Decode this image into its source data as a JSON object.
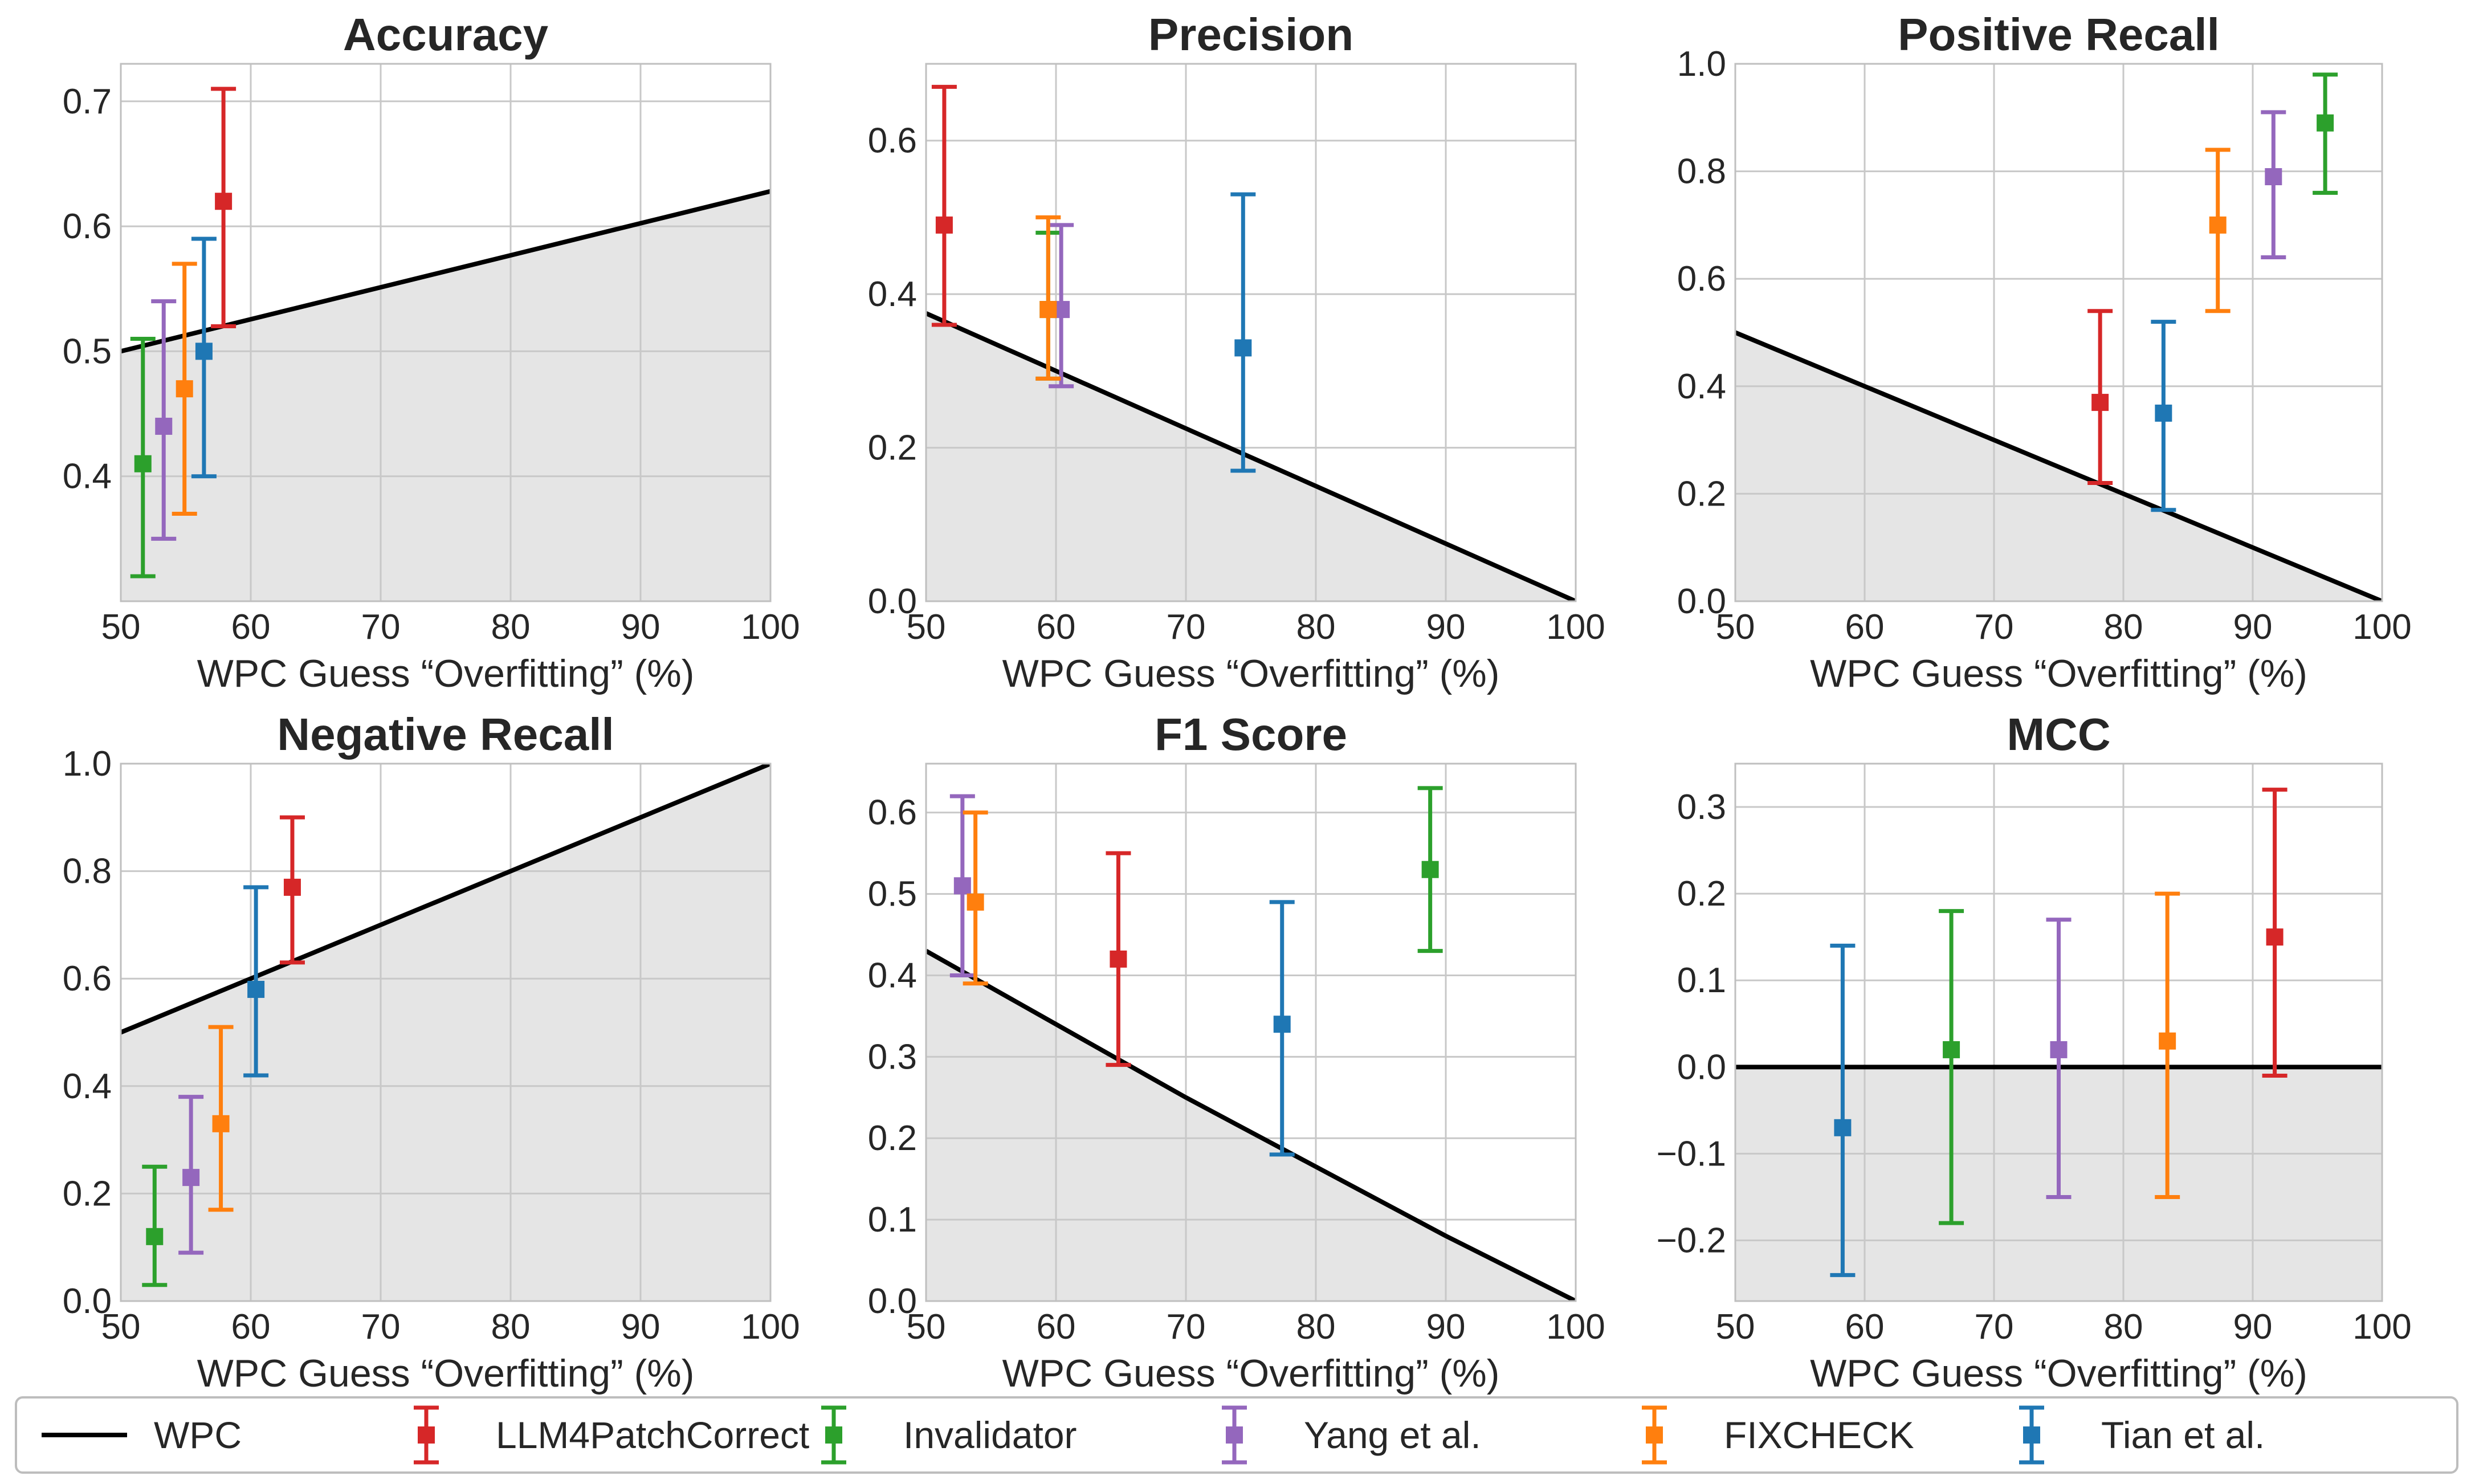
{
  "colors": {
    "WPC": "#000000",
    "LLM4PatchCorrect": "#d62728",
    "Invalidator": "#2ca02c",
    "Yang et al.": "#9467bd",
    "FIXCHECK": "#ff7f0e",
    "Tian et al.": "#1f77b4",
    "shade": "#e5e5e5",
    "grid": "#c8c8c8",
    "axes": "#bfbfbf"
  },
  "legend": {
    "placement": "bottom",
    "entries": [
      "WPC",
      "LLM4PatchCorrect",
      "Invalidator",
      "Yang et al.",
      "FIXCHECK",
      "Tian et al."
    ]
  },
  "chart_data": [
    {
      "type": "scatter",
      "title": "Accuracy",
      "xlabel": "WPC Guess “Overfitting” (%)",
      "ylabel": "",
      "xlim": [
        50,
        100
      ],
      "ylim": [
        0.3,
        0.73
      ],
      "xticks": [
        50,
        60,
        70,
        80,
        90,
        100
      ],
      "yticks": [
        0.4,
        0.5,
        0.6,
        0.7
      ],
      "grid": true,
      "wpc_line": {
        "x": [
          50,
          100
        ],
        "y": [
          0.5,
          0.628
        ]
      },
      "series": [
        {
          "name": "LLM4PatchCorrect",
          "x": 57.9,
          "y": 0.62,
          "err_low": 0.52,
          "err_high": 0.71
        },
        {
          "name": "Invalidator",
          "x": 51.7,
          "y": 0.41,
          "err_low": 0.32,
          "err_high": 0.51
        },
        {
          "name": "Yang et al.",
          "x": 53.3,
          "y": 0.44,
          "err_low": 0.35,
          "err_high": 0.54
        },
        {
          "name": "FIXCHECK",
          "x": 54.9,
          "y": 0.47,
          "err_low": 0.37,
          "err_high": 0.57
        },
        {
          "name": "Tian et al.",
          "x": 56.4,
          "y": 0.5,
          "err_low": 0.4,
          "err_high": 0.59
        }
      ]
    },
    {
      "type": "scatter",
      "title": "Precision",
      "xlabel": "WPC Guess “Overfitting” (%)",
      "ylabel": "",
      "xlim": [
        50,
        100
      ],
      "ylim": [
        0,
        0.7
      ],
      "xticks": [
        50,
        60,
        70,
        80,
        90,
        100
      ],
      "yticks": [
        0.0,
        0.2,
        0.4,
        0.6
      ],
      "grid": true,
      "wpc_line": {
        "x": [
          50,
          60,
          70,
          80,
          90,
          100
        ],
        "y": [
          0.375,
          0.3,
          0.225,
          0.15,
          0.075,
          0.0
        ]
      },
      "series": [
        {
          "name": "LLM4PatchCorrect",
          "x": 51.4,
          "y": 0.49,
          "err_low": 0.36,
          "err_high": 0.67
        },
        {
          "name": "Invalidator",
          "x": 59.4,
          "y": 0.38,
          "err_low": 0.29,
          "err_high": 0.48
        },
        {
          "name": "Yang et al.",
          "x": 60.4,
          "y": 0.38,
          "err_low": 0.28,
          "err_high": 0.49
        },
        {
          "name": "FIXCHECK",
          "x": 59.4,
          "y": 0.38,
          "err_low": 0.29,
          "err_high": 0.5
        },
        {
          "name": "Tian et al.",
          "x": 74.4,
          "y": 0.33,
          "err_low": 0.17,
          "err_high": 0.53
        }
      ]
    },
    {
      "type": "scatter",
      "title": "Positive Recall",
      "xlabel": "WPC Guess “Overfitting” (%)",
      "ylabel": "",
      "xlim": [
        50,
        100
      ],
      "ylim": [
        0,
        1.0
      ],
      "xticks": [
        50,
        60,
        70,
        80,
        90,
        100
      ],
      "yticks": [
        0.0,
        0.2,
        0.4,
        0.6,
        0.8,
        1.0
      ],
      "grid": true,
      "wpc_line": {
        "x": [
          50,
          100
        ],
        "y": [
          0.5,
          0.0
        ]
      },
      "series": [
        {
          "name": "LLM4PatchCorrect",
          "x": 78.2,
          "y": 0.37,
          "err_low": 0.22,
          "err_high": 0.54
        },
        {
          "name": "Invalidator",
          "x": 95.6,
          "y": 0.89,
          "err_low": 0.76,
          "err_high": 0.98
        },
        {
          "name": "Yang et al.",
          "x": 91.6,
          "y": 0.79,
          "err_low": 0.64,
          "err_high": 0.91
        },
        {
          "name": "FIXCHECK",
          "x": 87.3,
          "y": 0.7,
          "err_low": 0.54,
          "err_high": 0.84
        },
        {
          "name": "Tian et al.",
          "x": 83.1,
          "y": 0.35,
          "err_low": 0.17,
          "err_high": 0.52
        }
      ]
    },
    {
      "type": "scatter",
      "title": "Negative Recall",
      "xlabel": "WPC Guess “Overfitting” (%)",
      "ylabel": "",
      "xlim": [
        50,
        100
      ],
      "ylim": [
        0,
        1.0
      ],
      "xticks": [
        50,
        60,
        70,
        80,
        90,
        100
      ],
      "yticks": [
        0.0,
        0.2,
        0.4,
        0.6,
        0.8,
        1.0
      ],
      "grid": true,
      "wpc_line": {
        "x": [
          50,
          100
        ],
        "y": [
          0.5,
          1.0
        ]
      },
      "series": [
        {
          "name": "LLM4PatchCorrect",
          "x": 63.2,
          "y": 0.77,
          "err_low": 0.63,
          "err_high": 0.9
        },
        {
          "name": "Invalidator",
          "x": 52.6,
          "y": 0.12,
          "err_low": 0.03,
          "err_high": 0.25
        },
        {
          "name": "Yang et al.",
          "x": 55.4,
          "y": 0.23,
          "err_low": 0.09,
          "err_high": 0.38
        },
        {
          "name": "FIXCHECK",
          "x": 57.7,
          "y": 0.33,
          "err_low": 0.17,
          "err_high": 0.51
        },
        {
          "name": "Tian et al.",
          "x": 60.4,
          "y": 0.58,
          "err_low": 0.42,
          "err_high": 0.77
        }
      ]
    },
    {
      "type": "scatter",
      "title": "F1 Score",
      "xlabel": "WPC Guess “Overfitting” (%)",
      "ylabel": "",
      "xlim": [
        50,
        100
      ],
      "ylim": [
        0,
        0.66
      ],
      "xticks": [
        50,
        60,
        70,
        80,
        90,
        100
      ],
      "yticks": [
        0.0,
        0.1,
        0.2,
        0.3,
        0.4,
        0.5,
        0.6
      ],
      "grid": true,
      "wpc_line": {
        "x": [
          50,
          60,
          70,
          80,
          90,
          100
        ],
        "y": [
          0.43,
          0.34,
          0.25,
          0.165,
          0.08,
          0.0
        ]
      },
      "series": [
        {
          "name": "LLM4PatchCorrect",
          "x": 64.8,
          "y": 0.42,
          "err_low": 0.29,
          "err_high": 0.55
        },
        {
          "name": "Invalidator",
          "x": 88.8,
          "y": 0.53,
          "err_low": 0.43,
          "err_high": 0.63
        },
        {
          "name": "Yang et al.",
          "x": 52.8,
          "y": 0.51,
          "err_low": 0.4,
          "err_high": 0.62
        },
        {
          "name": "FIXCHECK",
          "x": 53.8,
          "y": 0.49,
          "err_low": 0.39,
          "err_high": 0.6
        },
        {
          "name": "Tian et al.",
          "x": 77.4,
          "y": 0.34,
          "err_low": 0.18,
          "err_high": 0.49
        }
      ]
    },
    {
      "type": "scatter",
      "title": "MCC",
      "xlabel": "WPC Guess “Overfitting” (%)",
      "ylabel": "",
      "xlim": [
        50,
        100
      ],
      "ylim": [
        -0.27,
        0.35
      ],
      "xticks": [
        50,
        60,
        70,
        80,
        90,
        100
      ],
      "yticks": [
        -0.2,
        -0.1,
        0.0,
        0.1,
        0.2,
        0.3
      ],
      "grid": true,
      "wpc_line": {
        "x": [
          50,
          100
        ],
        "y": [
          0.0,
          0.0
        ]
      },
      "series": [
        {
          "name": "LLM4PatchCorrect",
          "x": 91.7,
          "y": 0.15,
          "err_low": -0.01,
          "err_high": 0.32
        },
        {
          "name": "Invalidator",
          "x": 66.7,
          "y": 0.02,
          "err_low": -0.18,
          "err_high": 0.18
        },
        {
          "name": "Yang et al.",
          "x": 75.0,
          "y": 0.02,
          "err_low": -0.15,
          "err_high": 0.17
        },
        {
          "name": "FIXCHECK",
          "x": 83.4,
          "y": 0.03,
          "err_low": -0.15,
          "err_high": 0.2
        },
        {
          "name": "Tian et al.",
          "x": 58.3,
          "y": -0.07,
          "err_low": -0.24,
          "err_high": 0.14
        }
      ]
    }
  ]
}
